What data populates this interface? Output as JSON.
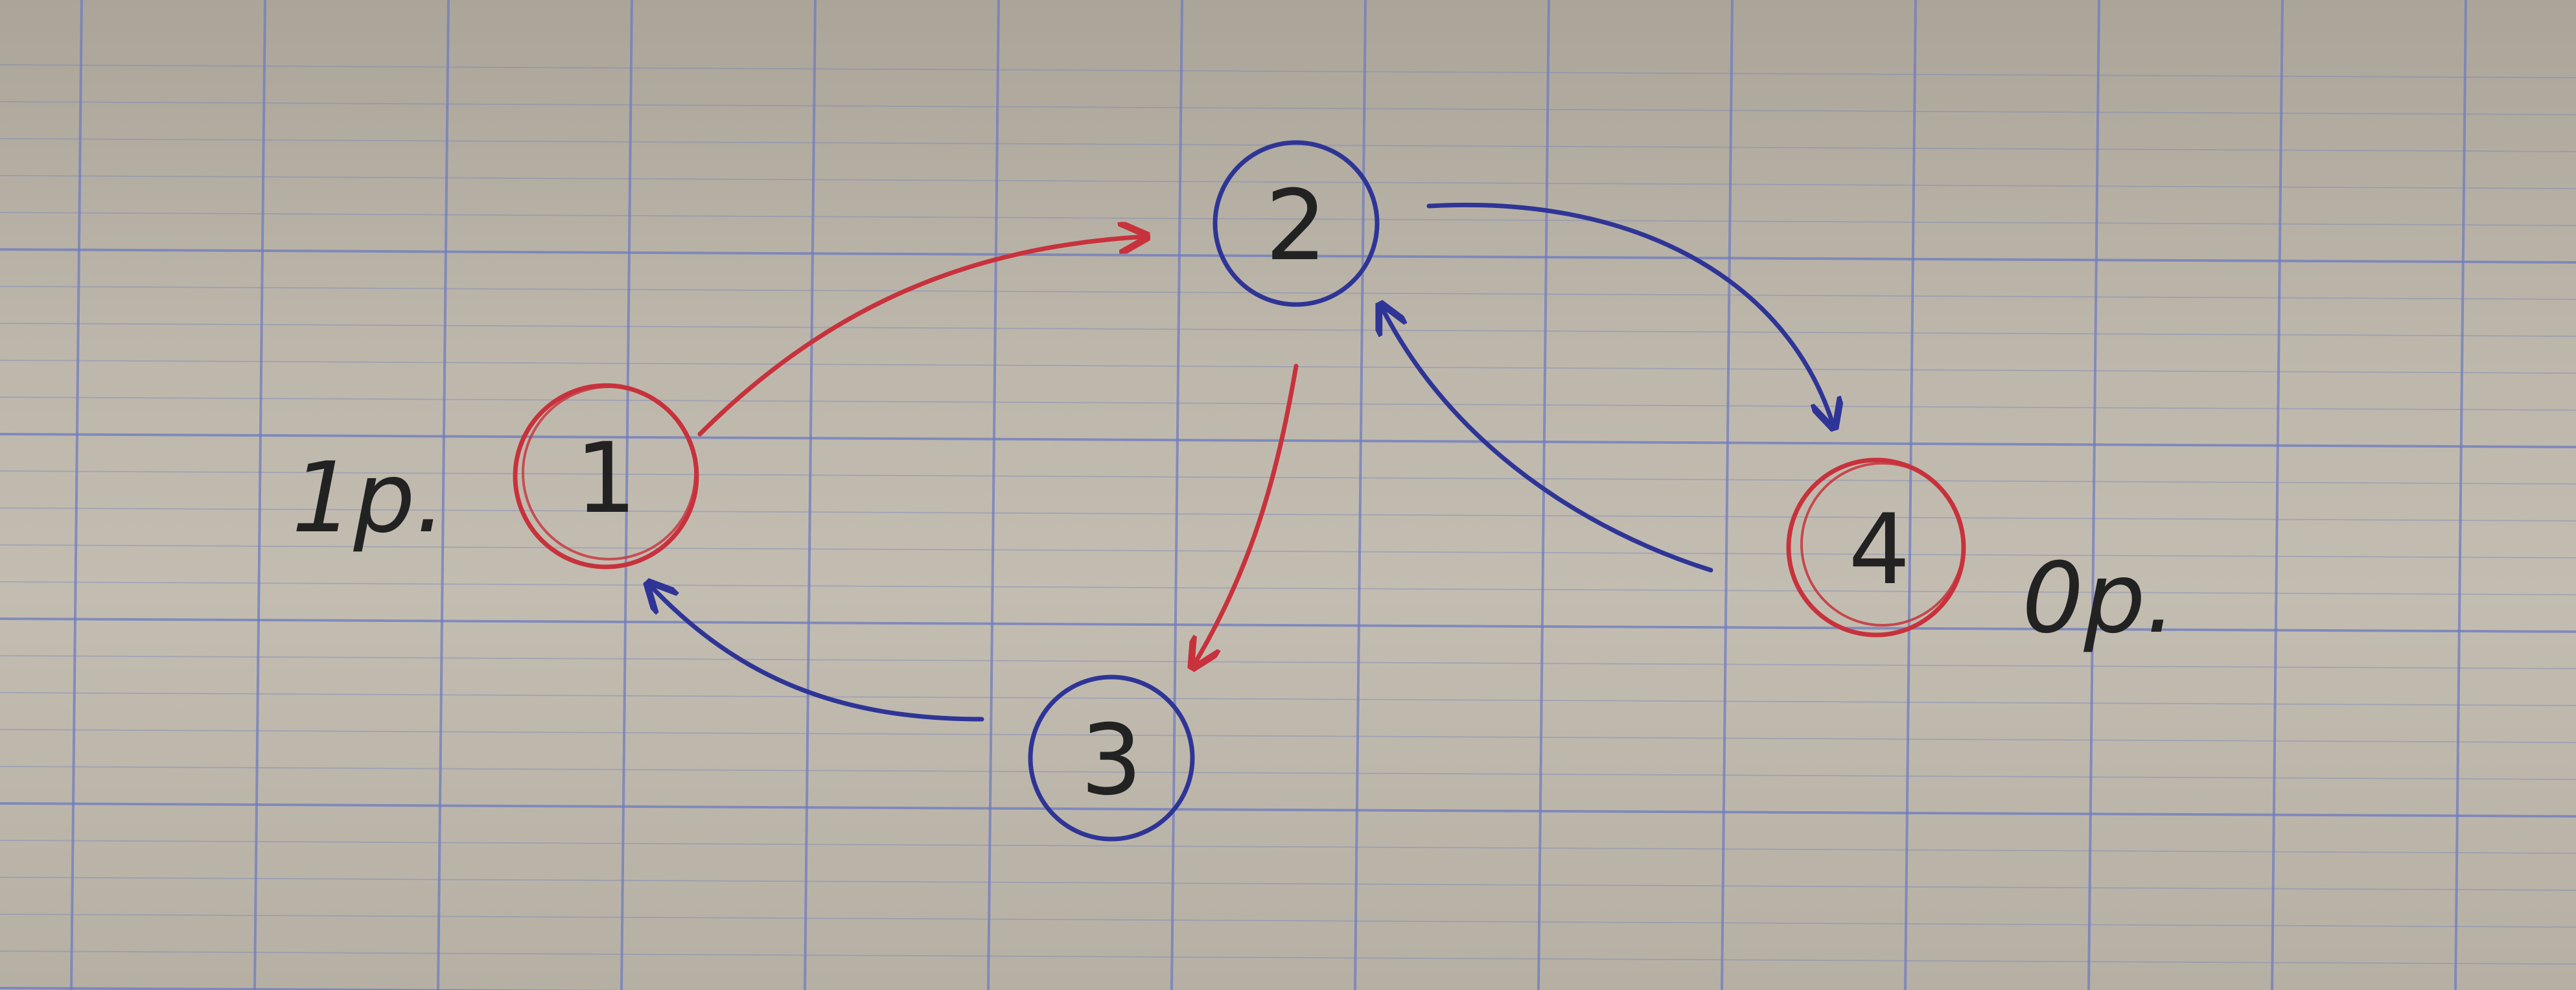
{
  "diagram": {
    "type": "directed-graph",
    "nodes": [
      {
        "id": "n1",
        "label": "1",
        "ring_color": "#c8323c",
        "annotation": "1p."
      },
      {
        "id": "n2",
        "label": "2",
        "ring_color": "#2f3596",
        "annotation": ""
      },
      {
        "id": "n3",
        "label": "3",
        "ring_color": "#2f3596",
        "annotation": ""
      },
      {
        "id": "n4",
        "label": "4",
        "ring_color": "#c8323c",
        "annotation": "0p."
      }
    ],
    "edges": [
      {
        "from": "n1",
        "to": "n2",
        "color": "#c8323c"
      },
      {
        "from": "n2",
        "to": "n3",
        "color": "#c8323c"
      },
      {
        "from": "n3",
        "to": "n1",
        "color": "#2f3596"
      },
      {
        "from": "n2",
        "to": "n4",
        "color": "#2f3596"
      },
      {
        "from": "n4",
        "to": "n2",
        "color": "#2f3596"
      }
    ]
  },
  "colors": {
    "paper": "#bdb7ab",
    "grid_line": "#6f7cc0",
    "ink_black": "#222222",
    "ink_red": "#c8323c",
    "ink_blue": "#2f3596"
  }
}
